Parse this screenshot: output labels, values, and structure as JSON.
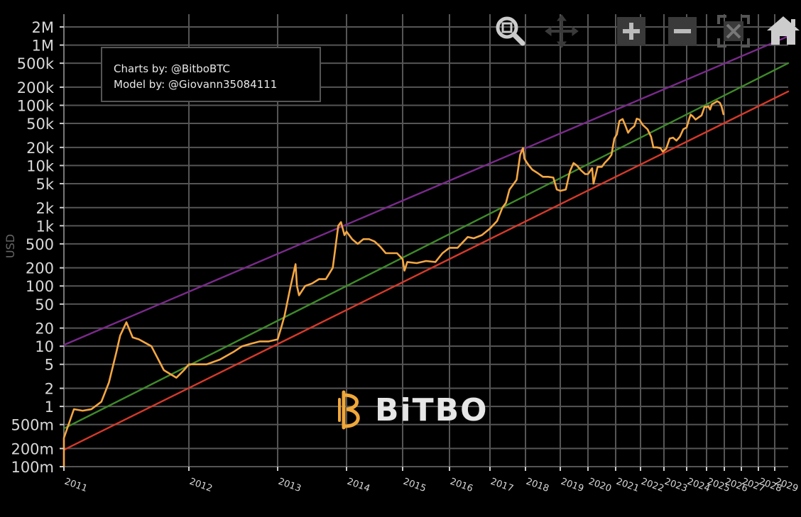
{
  "credits": {
    "line1": "Charts by: @BitboBTC",
    "line2": "Model by: @Giovann35084111"
  },
  "watermark": {
    "text": "BiTBO"
  },
  "toolbar": [
    "zoom-icon",
    "pan-icon",
    "zoom-in-icon",
    "zoom-out-icon",
    "autoscale-icon",
    "reset-home-icon"
  ],
  "colors": {
    "price": "#f5a742",
    "upper_band": "#7a2a8c",
    "fair_value": "#3f8a2a",
    "lower_band": "#d63a2a",
    "grid": "#555555",
    "background": "#000000",
    "axis_text": "#cccccc",
    "ylabel": "#666666"
  },
  "chart_data": {
    "type": "line",
    "ylabel": "USD",
    "yscale": "log",
    "ylim": [
      0.08,
      2600000
    ],
    "xlim": [
      2009.0,
      2029.25
    ],
    "y_ticks": [
      {
        "v": 0.1,
        "label": "100m"
      },
      {
        "v": 0.2,
        "label": "200m"
      },
      {
        "v": 0.5,
        "label": "500m"
      },
      {
        "v": 1,
        "label": "1"
      },
      {
        "v": 2,
        "label": "2"
      },
      {
        "v": 5,
        "label": "5"
      },
      {
        "v": 10,
        "label": "10"
      },
      {
        "v": 20,
        "label": "20"
      },
      {
        "v": 50,
        "label": "50"
      },
      {
        "v": 100,
        "label": "100"
      },
      {
        "v": 200,
        "label": "200"
      },
      {
        "v": 500,
        "label": "500"
      },
      {
        "v": 1000,
        "label": "1k"
      },
      {
        "v": 2000,
        "label": "2k"
      },
      {
        "v": 5000,
        "label": "5k"
      },
      {
        "v": 10000,
        "label": "10k"
      },
      {
        "v": 20000,
        "label": "20k"
      },
      {
        "v": 50000,
        "label": "50k"
      },
      {
        "v": 100000,
        "label": "100k"
      },
      {
        "v": 200000,
        "label": "200k"
      },
      {
        "v": 500000,
        "label": "500k"
      },
      {
        "v": 1000000,
        "label": "1M"
      },
      {
        "v": 2000000,
        "label": "2M"
      }
    ],
    "x_ticks": [
      {
        "v": 2011,
        "label": "2011"
      },
      {
        "v": 2012,
        "label": "2012"
      },
      {
        "v": 2013,
        "label": "2013"
      },
      {
        "v": 2014,
        "label": "2014"
      },
      {
        "v": 2015,
        "label": "2015"
      },
      {
        "v": 2016,
        "label": "2016"
      },
      {
        "v": 2017,
        "label": "2017"
      },
      {
        "v": 2018,
        "label": "2018"
      },
      {
        "v": 2019,
        "label": "2019"
      },
      {
        "v": 2020,
        "label": "2020"
      },
      {
        "v": 2021,
        "label": "2021"
      },
      {
        "v": 2022,
        "label": "2022"
      },
      {
        "v": 2023,
        "label": "2023"
      },
      {
        "v": 2024,
        "label": "2024"
      },
      {
        "v": 2025,
        "label": "2025"
      },
      {
        "v": 2026,
        "label": "2026"
      },
      {
        "v": 2027,
        "label": "2027"
      },
      {
        "v": 2028,
        "label": "2028"
      },
      {
        "v": 2029,
        "label": "2029"
      }
    ],
    "grid": true,
    "series": [
      {
        "key": "price",
        "x": [
          2010.55,
          2010.62,
          2010.7,
          2010.78,
          2010.85,
          2010.92,
          2011.0,
          2011.08,
          2011.15,
          2011.22,
          2011.3,
          2011.36,
          2011.42,
          2011.45,
          2011.5,
          2011.55,
          2011.6,
          2011.7,
          2011.8,
          2011.9,
          2011.96,
          2012.0,
          2012.1,
          2012.2,
          2012.35,
          2012.5,
          2012.6,
          2012.7,
          2012.8,
          2012.9,
          2013.0,
          2013.05,
          2013.1,
          2013.18,
          2013.26,
          2013.28,
          2013.31,
          2013.4,
          2013.5,
          2013.6,
          2013.7,
          2013.8,
          2013.88,
          2013.92,
          2013.97,
          2014.0,
          2014.1,
          2014.2,
          2014.3,
          2014.4,
          2014.5,
          2014.6,
          2014.7,
          2014.8,
          2014.9,
          2015.0,
          2015.04,
          2015.1,
          2015.3,
          2015.5,
          2015.7,
          2015.85,
          2016.0,
          2016.2,
          2016.45,
          2016.6,
          2016.8,
          2017.0,
          2017.2,
          2017.35,
          2017.45,
          2017.55,
          2017.65,
          2017.75,
          2017.85,
          2017.93,
          2017.97,
          2018.05,
          2018.1,
          2018.2,
          2018.35,
          2018.5,
          2018.65,
          2018.8,
          2018.9,
          2019.0,
          2019.2,
          2019.35,
          2019.48,
          2019.6,
          2019.75,
          2019.9,
          2020.0,
          2020.15,
          2020.2,
          2020.35,
          2020.5,
          2020.6,
          2020.75,
          2020.85,
          2020.95,
          2021.05,
          2021.15,
          2021.28,
          2021.4,
          2021.5,
          2021.6,
          2021.75,
          2021.85,
          2021.95,
          2022.1,
          2022.3,
          2022.45,
          2022.55,
          2022.7,
          2022.85,
          2022.95,
          2023.1,
          2023.25,
          2023.4,
          2023.55,
          2023.7,
          2023.85,
          2024.0,
          2024.15,
          2024.2,
          2024.3,
          2024.45,
          2024.6,
          2024.75,
          2024.9,
          2025.0,
          2025.1,
          2025.2,
          2025.3,
          2025.45,
          2025.6,
          2025.75,
          2025.85,
          2025.95
        ],
        "y": [
          0.07,
          0.08,
          0.1,
          0.19,
          0.28,
          0.3,
          0.3,
          0.9,
          0.85,
          0.9,
          1.2,
          2.5,
          8,
          15,
          25,
          14,
          13,
          10,
          4,
          3,
          4,
          5,
          5,
          5,
          6,
          8,
          10,
          11,
          12,
          12,
          13,
          20,
          32,
          90,
          230,
          100,
          70,
          100,
          110,
          130,
          130,
          200,
          1000,
          1150,
          700,
          800,
          600,
          500,
          600,
          600,
          550,
          450,
          350,
          350,
          350,
          280,
          180,
          250,
          240,
          260,
          250,
          350,
          430,
          430,
          650,
          620,
          700,
          900,
          1200,
          2000,
          2400,
          4000,
          4800,
          5800,
          15000,
          19500,
          13000,
          11000,
          10000,
          8500,
          7500,
          6500,
          6500,
          6300,
          4000,
          3800,
          4000,
          8000,
          11000,
          10000,
          8300,
          7200,
          7200,
          9000,
          5000,
          9500,
          9500,
          11000,
          13000,
          15000,
          28000,
          33000,
          55000,
          59000,
          45000,
          35000,
          40000,
          45000,
          60000,
          58000,
          47000,
          40000,
          30000,
          20000,
          20000,
          19500,
          17000,
          19000,
          28000,
          29000,
          26000,
          30000,
          40000,
          43000,
          63000,
          70000,
          66000,
          58000,
          63000,
          68000,
          95000,
          94000,
          96000,
          85000,
          104000,
          110000,
          117000,
          110000,
          95000,
          71000
        ]
      },
      {
        "key": "upper_band",
        "x": [
          2010.55,
          2029.25
        ],
        "y": [
          10.5,
          1400000
        ]
      },
      {
        "key": "fair_value",
        "x": [
          2010.55,
          2029.25
        ],
        "y": [
          0.43,
          500000
        ]
      },
      {
        "key": "lower_band",
        "x": [
          2010.55,
          2029.25
        ],
        "y": [
          0.19,
          170000
        ]
      }
    ]
  }
}
